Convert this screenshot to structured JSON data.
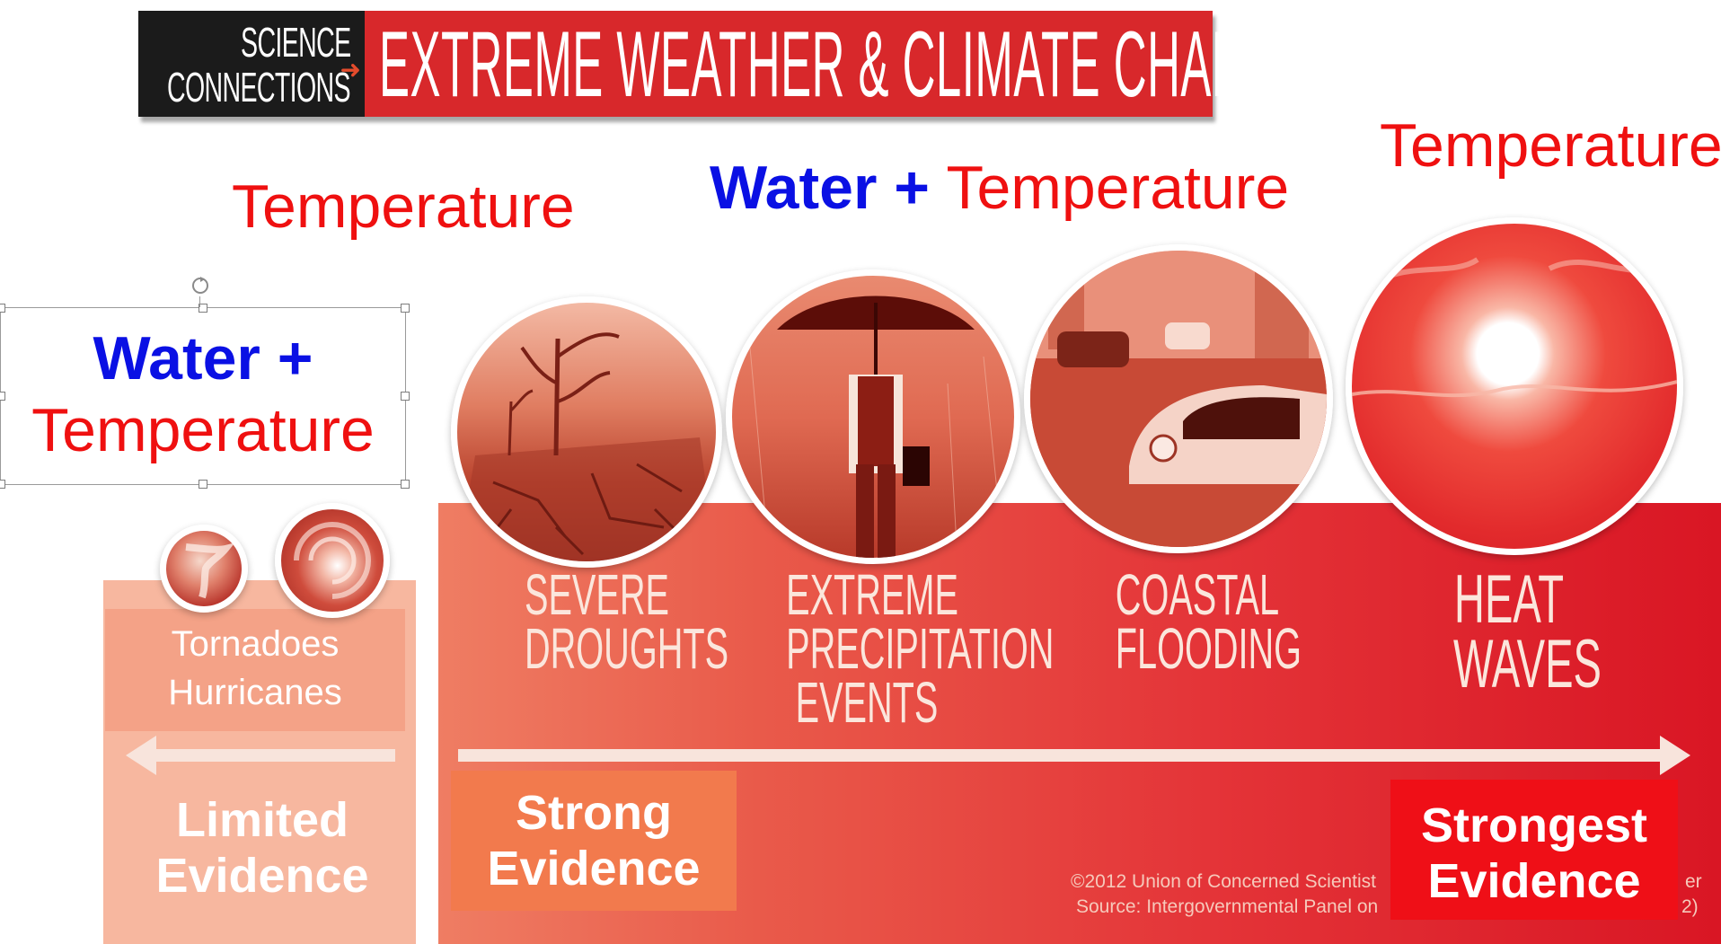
{
  "banner": {
    "left_line1": "SCIENCE",
    "left_line2": "CONNECTIONS",
    "title": "EXTREME WEATHER & CLIMATE CHANGE"
  },
  "labels": {
    "temperature_left": "Temperature",
    "water_plus": "Water +",
    "temperature_mid": "Temperature",
    "temperature_right": "Temperature",
    "box_water_plus": "Water +",
    "box_temperature": "Temperature"
  },
  "left_events": {
    "line1": "Tornadoes",
    "line2": "Hurricanes"
  },
  "events": [
    {
      "label": "SEVERE\nDROUGHTS"
    },
    {
      "label": "EXTREME\nPRECIPITATION\nEVENTS"
    },
    {
      "label": "COASTAL\nFLOODING"
    },
    {
      "label": "HEAT\nWAVES"
    }
  ],
  "evidence": {
    "limited": "Limited\nEvidence",
    "strong": "Strong\nEvidence",
    "strongest": "Strongest\nEvidence"
  },
  "credits": {
    "line1": "©2012 Union of Concerned Scientist",
    "line2": "Source: Intergovernmental Panel on",
    "tail1": "er",
    "tail2": "2)"
  },
  "colors": {
    "banner_red": "#d8282b",
    "banner_black": "#1b1b1b",
    "label_blue": "#0a10e4",
    "label_red": "#ef1010",
    "strongest_box": "#ef0f17",
    "strong_box": "#f27a4d",
    "limited_box": "#f7b79f"
  }
}
